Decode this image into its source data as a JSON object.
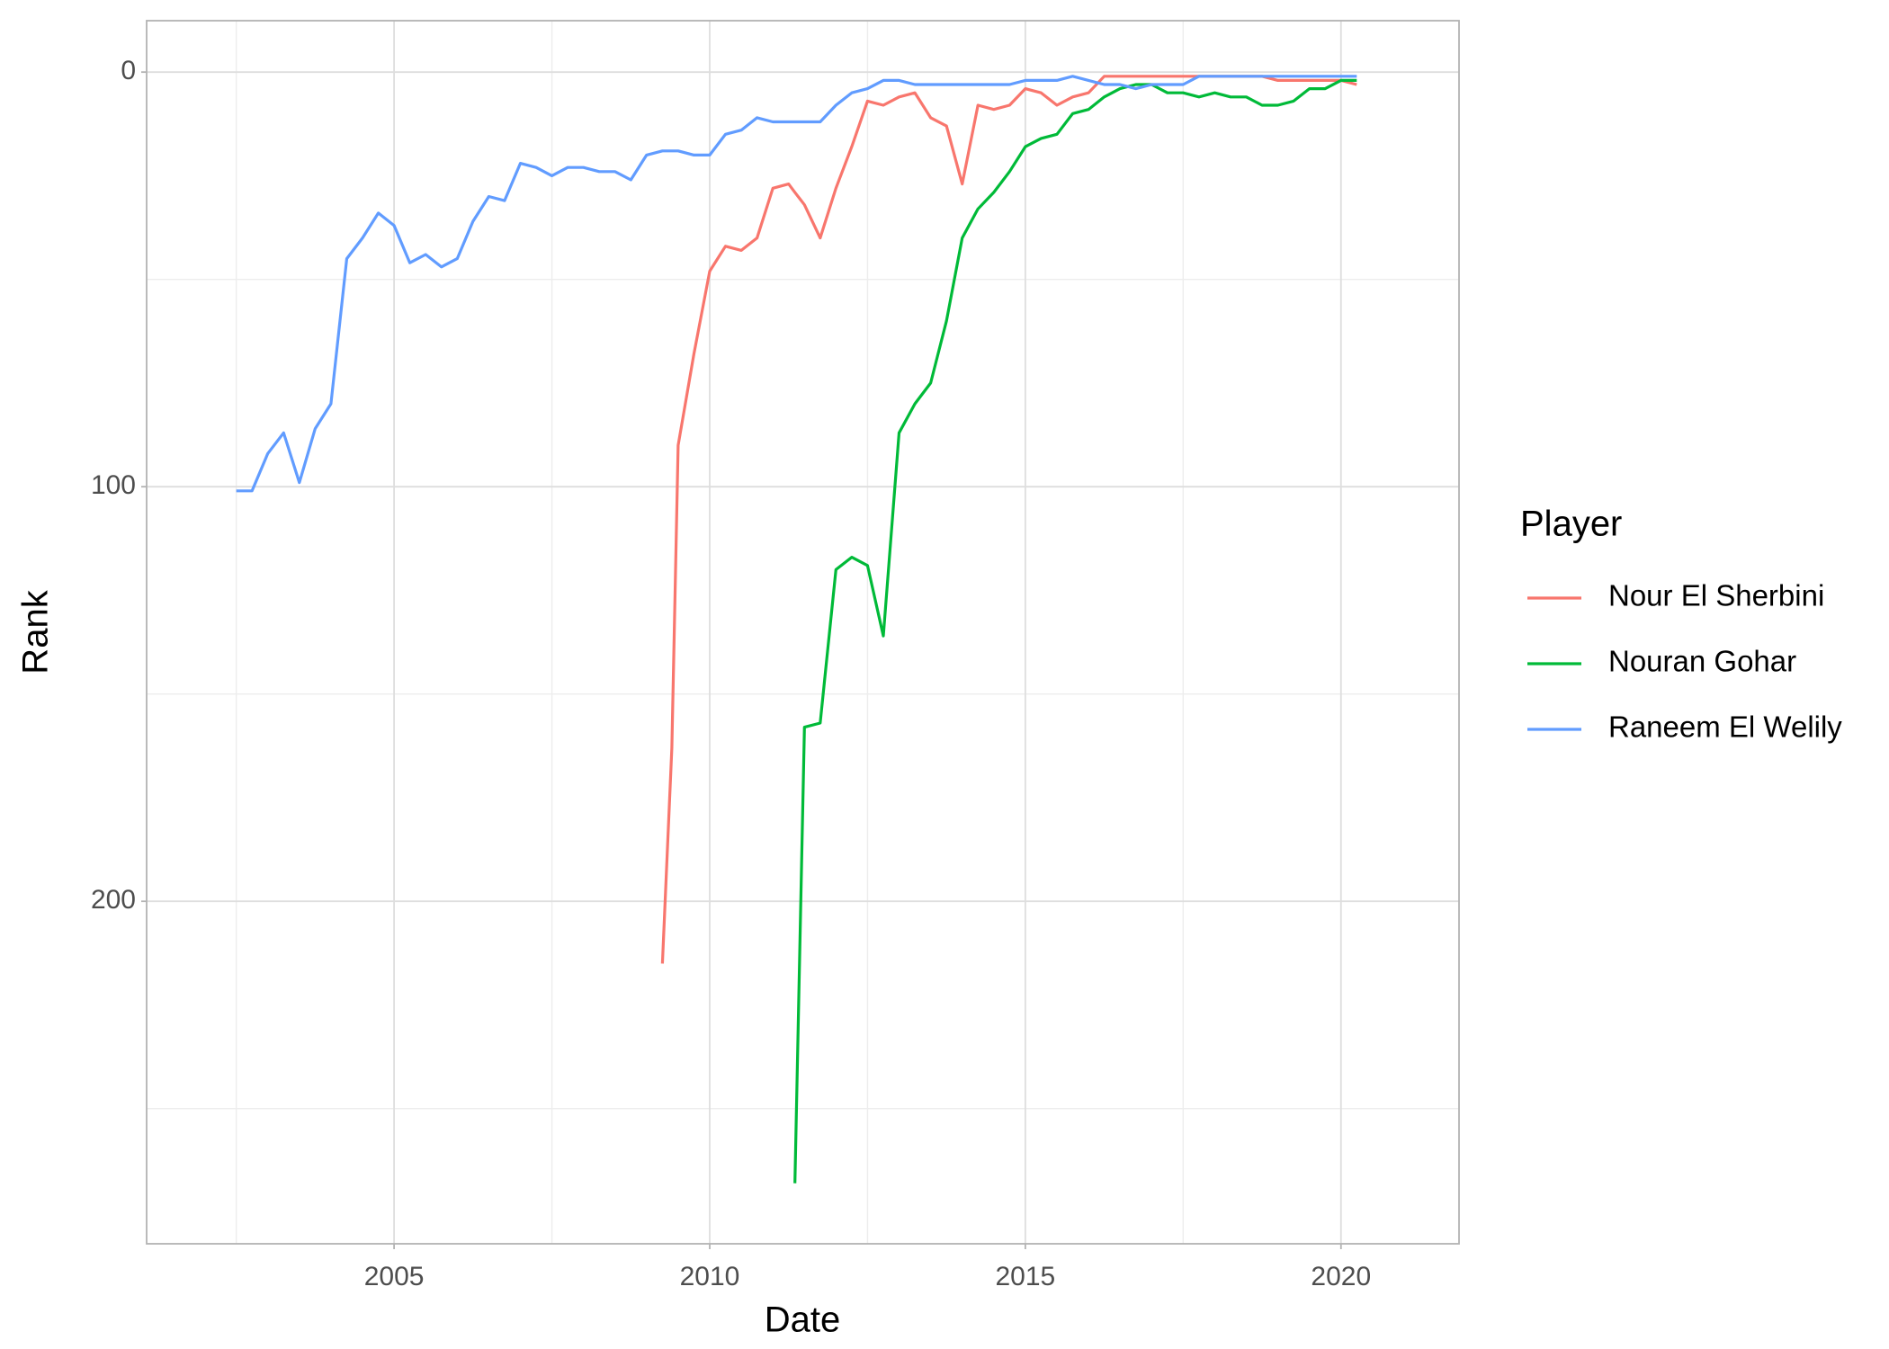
{
  "chart_data": {
    "type": "line",
    "x_label": "Date",
    "y_label": "Rank",
    "legend_title": "Player",
    "legend": "right",
    "grid": true,
    "x": [
      2002.5,
      2002.75,
      2003,
      2003.25,
      2003.5,
      2003.75,
      2004,
      2004.25,
      2004.5,
      2004.75,
      2005,
      2005.25,
      2005.5,
      2005.75,
      2006,
      2006.25,
      2006.5,
      2006.75,
      2007,
      2007.25,
      2007.5,
      2007.75,
      2008,
      2008.25,
      2008.5,
      2008.75,
      2009,
      2009.25,
      2009.4,
      2009.5,
      2009.75,
      2010,
      2010.25,
      2010.5,
      2010.75,
      2011,
      2011.25,
      2011.35,
      2011.5,
      2011.75,
      2012,
      2012.25,
      2012.5,
      2012.75,
      2013,
      2013.25,
      2013.5,
      2013.75,
      2014,
      2014.25,
      2014.5,
      2014.75,
      2015,
      2015.25,
      2015.5,
      2015.75,
      2016,
      2016.25,
      2016.5,
      2016.75,
      2017,
      2017.25,
      2017.5,
      2017.75,
      2018,
      2018.25,
      2018.5,
      2018.75,
      2019,
      2019.25,
      2019.5,
      2019.75,
      2020,
      2020.25
    ],
    "series": [
      {
        "name": "Nour El Sherbini",
        "color": "#f8766d",
        "values": [
          null,
          null,
          null,
          null,
          null,
          null,
          null,
          null,
          null,
          null,
          null,
          null,
          null,
          null,
          null,
          null,
          null,
          null,
          null,
          null,
          null,
          null,
          null,
          null,
          null,
          null,
          null,
          215,
          163,
          90,
          68,
          48,
          42,
          43,
          40,
          28,
          27,
          29,
          32,
          40,
          28,
          18,
          7,
          8,
          6,
          5,
          11,
          13,
          27,
          8,
          9,
          8,
          4,
          5,
          8,
          6,
          5,
          1,
          1,
          1,
          1,
          1,
          1,
          1,
          1,
          1,
          1,
          1,
          2,
          2,
          2,
          2,
          2,
          3
        ]
      },
      {
        "name": "Nouran Gohar",
        "color": "#00ba38",
        "values": [
          null,
          null,
          null,
          null,
          null,
          null,
          null,
          null,
          null,
          null,
          null,
          null,
          null,
          null,
          null,
          null,
          null,
          null,
          null,
          null,
          null,
          null,
          null,
          null,
          null,
          null,
          null,
          null,
          null,
          null,
          null,
          null,
          null,
          null,
          null,
          null,
          null,
          268,
          158,
          157,
          120,
          117,
          119,
          136,
          87,
          80,
          75,
          60,
          40,
          33,
          29,
          24,
          18,
          16,
          15,
          10,
          9,
          6,
          4,
          3,
          3,
          5,
          5,
          6,
          5,
          6,
          6,
          8,
          8,
          7,
          4,
          4,
          2,
          2
        ]
      },
      {
        "name": "Raneem El Welily",
        "color": "#619cff",
        "values": [
          101,
          101,
          92,
          87,
          99,
          86,
          80,
          45,
          40,
          34,
          37,
          46,
          44,
          47,
          45,
          36,
          30,
          31,
          22,
          23,
          25,
          23,
          23,
          24,
          24,
          26,
          20,
          19,
          19,
          19,
          20,
          20,
          15,
          14,
          11,
          12,
          12,
          12,
          12,
          12,
          8,
          5,
          4,
          2,
          2,
          3,
          3,
          3,
          3,
          3,
          3,
          3,
          2,
          2,
          2,
          1,
          2,
          3,
          3,
          4,
          3,
          3,
          3,
          1,
          1,
          1,
          1,
          1,
          1,
          1,
          1,
          1,
          1,
          1
        ]
      }
    ],
    "xlim": [
      2001.08,
      2021.87
    ],
    "xticks": [
      2005,
      2010,
      2015,
      2020
    ],
    "minor_xticks": [
      2002.5,
      2007.5,
      2012.5,
      2017.5
    ],
    "ylim": [
      282.6,
      -12.4
    ],
    "yticks": [
      0,
      100,
      200
    ],
    "minor_yticks": [
      50,
      150,
      250
    ]
  }
}
